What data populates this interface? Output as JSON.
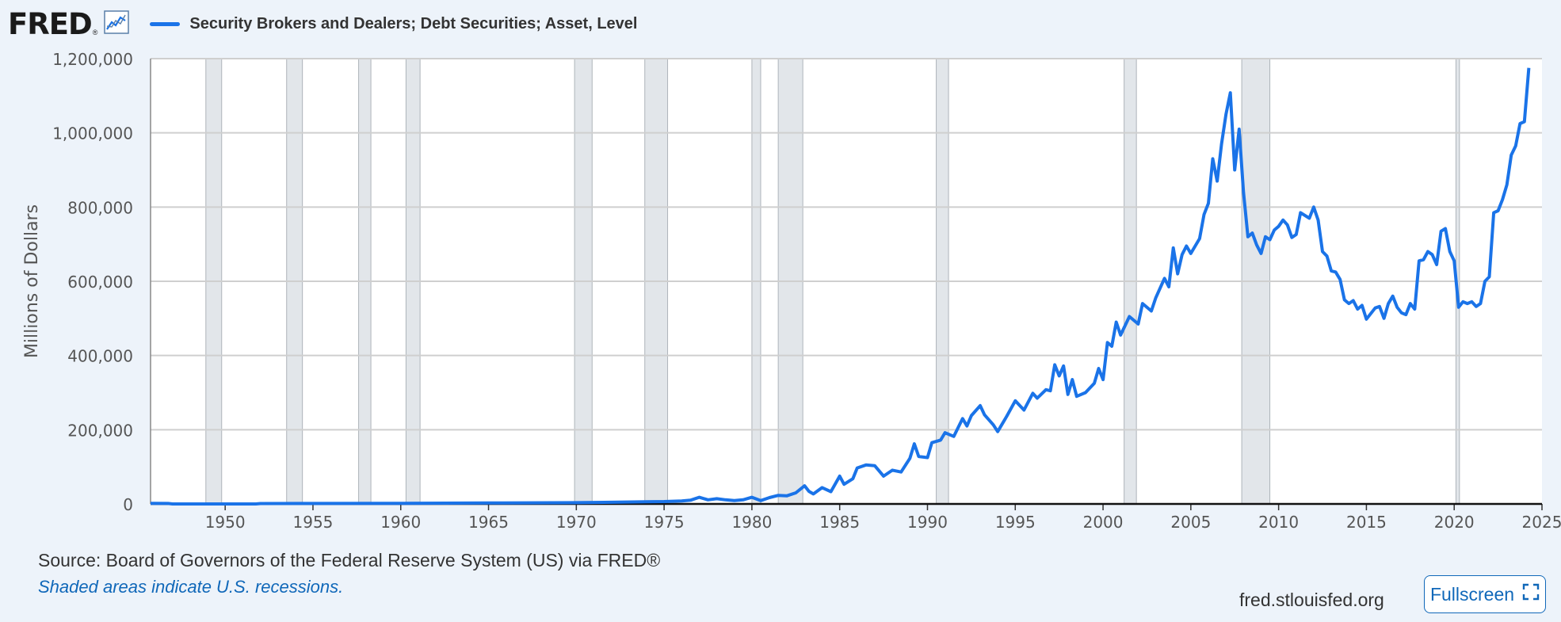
{
  "brand": {
    "logo_text": "FRED",
    "logo_mark": "®",
    "trend_icon": "chart-line-icon"
  },
  "legend": {
    "label": "Security Brokers and Dealers; Debt Securities; Asset, Level",
    "color": "#1a73e8"
  },
  "footer": {
    "source": "Source: Board of Governors of the Federal Reserve System (US) via FRED®",
    "note": "Shaded areas indicate U.S. recessions.",
    "site": "fred.stlouisfed.org",
    "fullscreen_label": "Fullscreen",
    "fullscreen_icon": "expand-icon"
  },
  "chart_data": {
    "type": "line",
    "title": "",
    "ylabel": "Millions of Dollars",
    "xlabel": "",
    "xlim": [
      1945.75,
      2025.0
    ],
    "ylim": [
      0,
      1200000
    ],
    "x_ticks": [
      1950,
      1955,
      1960,
      1965,
      1970,
      1975,
      1980,
      1985,
      1990,
      1995,
      2000,
      2005,
      2010,
      2015,
      2020,
      2025
    ],
    "y_ticks": [
      0,
      200000,
      400000,
      600000,
      800000,
      1000000,
      1200000
    ],
    "y_tick_labels": [
      "0",
      "200,000",
      "400,000",
      "600,000",
      "800,000",
      "1,000,000",
      "1,200,000"
    ],
    "grid": true,
    "line_color": "#1a73e8",
    "recession_color": "#e2e6ea",
    "recessions": [
      [
        1948.9,
        1949.8
      ],
      [
        1953.5,
        1954.4
      ],
      [
        1957.6,
        1958.3
      ],
      [
        1960.3,
        1961.1
      ],
      [
        1969.9,
        1970.9
      ],
      [
        1973.9,
        1975.2
      ],
      [
        1980.0,
        1980.5
      ],
      [
        1981.5,
        1982.9
      ],
      [
        1990.5,
        1991.2
      ],
      [
        2001.2,
        2001.9
      ],
      [
        2007.9,
        2009.5
      ],
      [
        2020.1,
        2020.3
      ]
    ],
    "series": [
      {
        "name": "Security Brokers and Dealers; Debt Securities; Asset, Level",
        "points": [
          [
            1945.75,
            1500
          ],
          [
            1946.75,
            1200
          ],
          [
            1947.0,
            0
          ],
          [
            1951.75,
            0
          ],
          [
            1952.0,
            1000
          ],
          [
            1955,
            1200
          ],
          [
            1960,
            1500
          ],
          [
            1965,
            2500
          ],
          [
            1970,
            3500
          ],
          [
            1972,
            4500
          ],
          [
            1974,
            6000
          ],
          [
            1975,
            6500
          ],
          [
            1976,
            8000
          ],
          [
            1976.5,
            10000
          ],
          [
            1977,
            18000
          ],
          [
            1977.5,
            11000
          ],
          [
            1978,
            14000
          ],
          [
            1978.5,
            11000
          ],
          [
            1979,
            9000
          ],
          [
            1979.5,
            11000
          ],
          [
            1980,
            18000
          ],
          [
            1980.5,
            9000
          ],
          [
            1981,
            17000
          ],
          [
            1981.5,
            23000
          ],
          [
            1982,
            22000
          ],
          [
            1982.5,
            30000
          ],
          [
            1983,
            49000
          ],
          [
            1983.25,
            34000
          ],
          [
            1983.5,
            27000
          ],
          [
            1984,
            44000
          ],
          [
            1984.5,
            33000
          ],
          [
            1985,
            75000
          ],
          [
            1985.25,
            53000
          ],
          [
            1985.75,
            68000
          ],
          [
            1986,
            97000
          ],
          [
            1986.5,
            105000
          ],
          [
            1987,
            103000
          ],
          [
            1987.5,
            75000
          ],
          [
            1988,
            91000
          ],
          [
            1988.5,
            86000
          ],
          [
            1989,
            123000
          ],
          [
            1989.25,
            162000
          ],
          [
            1989.5,
            128000
          ],
          [
            1990,
            125000
          ],
          [
            1990.25,
            165000
          ],
          [
            1990.75,
            172000
          ],
          [
            1991,
            192000
          ],
          [
            1991.5,
            182000
          ],
          [
            1992,
            230000
          ],
          [
            1992.25,
            210000
          ],
          [
            1992.5,
            238000
          ],
          [
            1993,
            265000
          ],
          [
            1993.25,
            240000
          ],
          [
            1993.75,
            213000
          ],
          [
            1994,
            195000
          ],
          [
            1994.5,
            235000
          ],
          [
            1995,
            278000
          ],
          [
            1995.5,
            253000
          ],
          [
            1996,
            298000
          ],
          [
            1996.25,
            285000
          ],
          [
            1996.75,
            308000
          ],
          [
            1997,
            305000
          ],
          [
            1997.25,
            375000
          ],
          [
            1997.5,
            345000
          ],
          [
            1997.75,
            372000
          ],
          [
            1998,
            295000
          ],
          [
            1998.25,
            335000
          ],
          [
            1998.5,
            290000
          ],
          [
            1999,
            300000
          ],
          [
            1999.5,
            325000
          ],
          [
            1999.75,
            365000
          ],
          [
            2000,
            335000
          ],
          [
            2000.25,
            435000
          ],
          [
            2000.5,
            425000
          ],
          [
            2000.75,
            490000
          ],
          [
            2001,
            455000
          ],
          [
            2001.5,
            505000
          ],
          [
            2002,
            485000
          ],
          [
            2002.25,
            540000
          ],
          [
            2002.75,
            520000
          ],
          [
            2003,
            555000
          ],
          [
            2003.5,
            608000
          ],
          [
            2003.75,
            585000
          ],
          [
            2004,
            690000
          ],
          [
            2004.25,
            620000
          ],
          [
            2004.5,
            672000
          ],
          [
            2004.75,
            695000
          ],
          [
            2005,
            675000
          ],
          [
            2005.5,
            715000
          ],
          [
            2005.75,
            780000
          ],
          [
            2006,
            810000
          ],
          [
            2006.25,
            930000
          ],
          [
            2006.5,
            870000
          ],
          [
            2006.75,
            970000
          ],
          [
            2007,
            1050000
          ],
          [
            2007.25,
            1108000
          ],
          [
            2007.5,
            900000
          ],
          [
            2007.75,
            1010000
          ],
          [
            2008,
            840000
          ],
          [
            2008.25,
            720000
          ],
          [
            2008.5,
            730000
          ],
          [
            2008.75,
            698000
          ],
          [
            2009,
            675000
          ],
          [
            2009.25,
            720000
          ],
          [
            2009.5,
            712000
          ],
          [
            2009.75,
            738000
          ],
          [
            2010,
            748000
          ],
          [
            2010.25,
            765000
          ],
          [
            2010.5,
            752000
          ],
          [
            2010.75,
            718000
          ],
          [
            2011,
            726000
          ],
          [
            2011.25,
            785000
          ],
          [
            2011.75,
            770000
          ],
          [
            2012,
            800000
          ],
          [
            2012.25,
            765000
          ],
          [
            2012.5,
            680000
          ],
          [
            2012.75,
            668000
          ],
          [
            2013,
            628000
          ],
          [
            2013.25,
            625000
          ],
          [
            2013.5,
            605000
          ],
          [
            2013.75,
            550000
          ],
          [
            2014,
            540000
          ],
          [
            2014.25,
            548000
          ],
          [
            2014.5,
            525000
          ],
          [
            2014.75,
            535000
          ],
          [
            2015,
            498000
          ],
          [
            2015.5,
            528000
          ],
          [
            2015.75,
            532000
          ],
          [
            2016,
            500000
          ],
          [
            2016.25,
            540000
          ],
          [
            2016.5,
            560000
          ],
          [
            2016.75,
            530000
          ],
          [
            2017,
            515000
          ],
          [
            2017.25,
            510000
          ],
          [
            2017.5,
            540000
          ],
          [
            2017.75,
            525000
          ],
          [
            2018,
            655000
          ],
          [
            2018.25,
            658000
          ],
          [
            2018.5,
            680000
          ],
          [
            2018.75,
            672000
          ],
          [
            2019,
            645000
          ],
          [
            2019.25,
            735000
          ],
          [
            2019.5,
            742000
          ],
          [
            2019.75,
            680000
          ],
          [
            2020,
            655000
          ],
          [
            2020.25,
            530000
          ],
          [
            2020.5,
            545000
          ],
          [
            2020.75,
            540000
          ],
          [
            2021,
            545000
          ],
          [
            2021.25,
            532000
          ],
          [
            2021.5,
            540000
          ],
          [
            2021.75,
            600000
          ],
          [
            2022,
            612000
          ],
          [
            2022.25,
            785000
          ],
          [
            2022.5,
            790000
          ],
          [
            2022.75,
            820000
          ],
          [
            2023,
            860000
          ],
          [
            2023.25,
            940000
          ],
          [
            2023.5,
            965000
          ],
          [
            2023.75,
            1025000
          ],
          [
            2024,
            1030000
          ],
          [
            2024.25,
            1175000
          ]
        ]
      }
    ]
  }
}
